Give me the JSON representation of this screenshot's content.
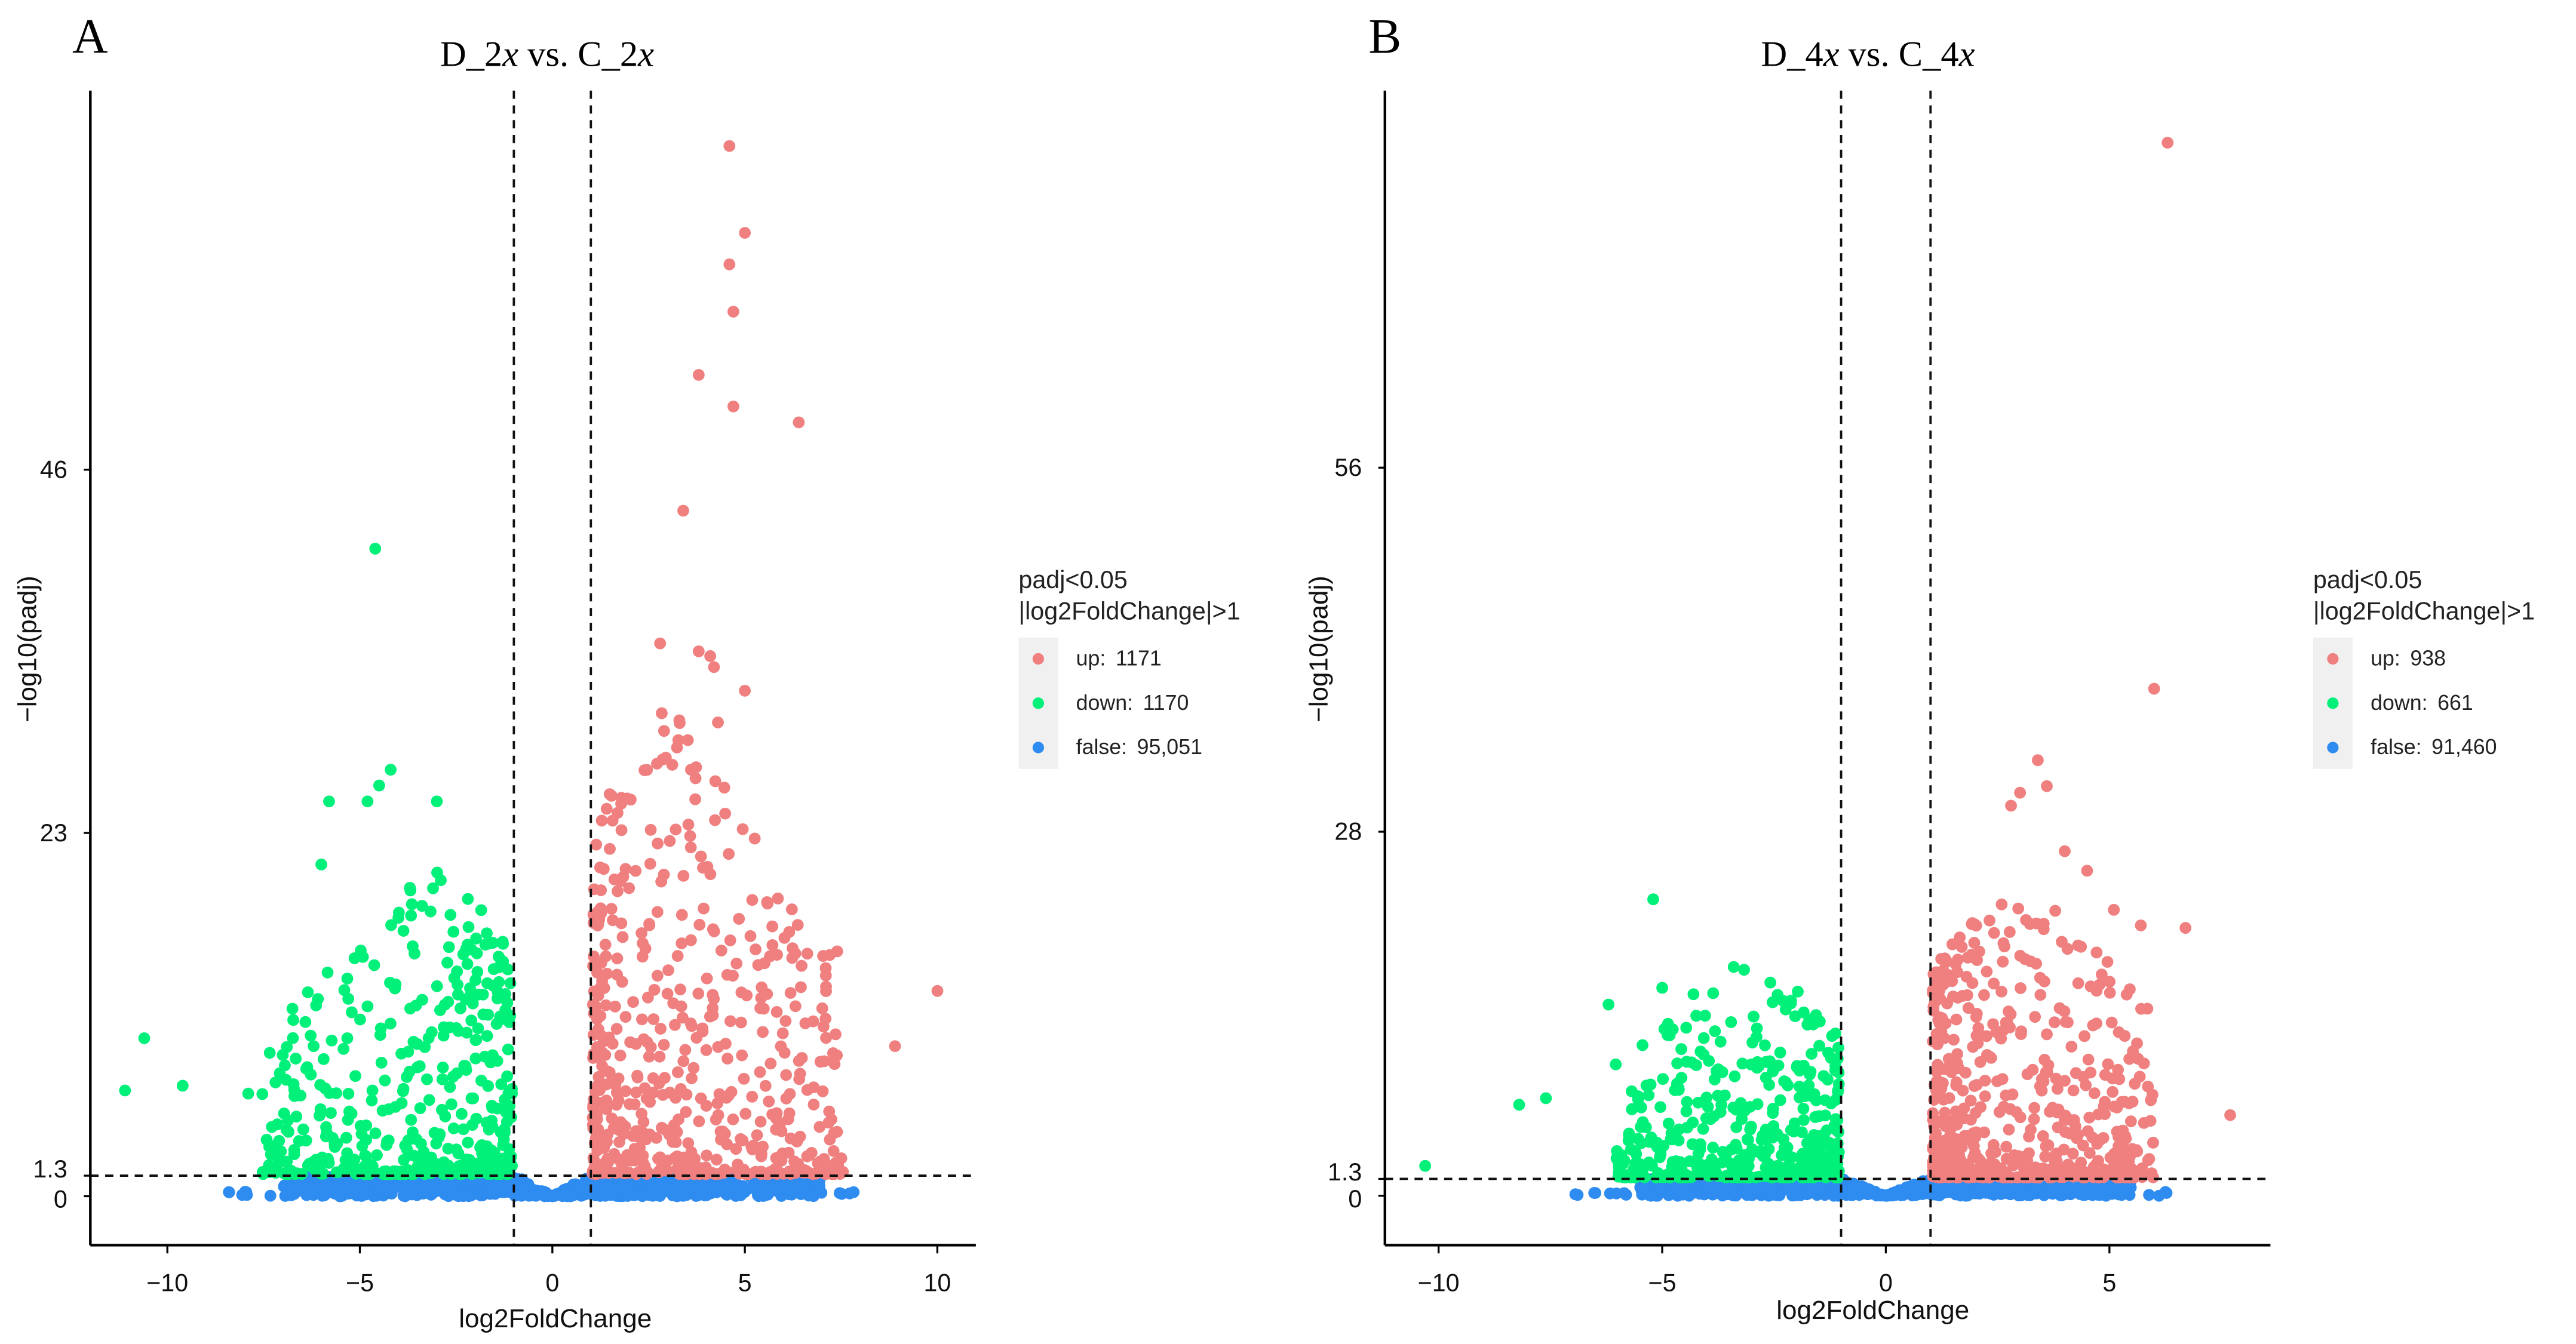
{
  "colors": {
    "up": "#F08080",
    "down": "#00F07A",
    "false": "#2E8BF0"
  },
  "chart_data": [
    {
      "type": "scatter",
      "panel_label": "A",
      "title_parts": [
        "D_2",
        "x",
        " vs. C_2",
        "x"
      ],
      "xlabel": "log2FoldChange",
      "ylabel": "−log10(padj)",
      "xlim": [
        -12.0,
        11.0
      ],
      "ylim": [
        -3.1,
        70
      ],
      "xticks": [
        -10,
        -5,
        0,
        5,
        10
      ],
      "xtick_labels": [
        "−10",
        "−5",
        "0",
        "5",
        "10"
      ],
      "yticks": [
        0,
        1.3,
        23,
        46
      ],
      "ytick_labels": [
        "0",
        "1.3",
        "23",
        "46"
      ],
      "thresholds": {
        "x": [
          -1,
          1
        ],
        "y": 1.3
      },
      "legend": {
        "title_lines": [
          "padj<0.05",
          "|log2FoldChange|>1"
        ],
        "placement": "right",
        "entries": [
          {
            "key": "up",
            "label": "up:",
            "count": "1171"
          },
          {
            "key": "down",
            "label": "down:",
            "count": "1170"
          },
          {
            "key": "false",
            "label": "false:",
            "count": "95,051"
          }
        ]
      },
      "series": [
        {
          "name": "up",
          "points": [
            [
              4.6,
              66.5
            ],
            [
              5.0,
              61
            ],
            [
              4.6,
              59
            ],
            [
              4.7,
              56
            ],
            [
              3.8,
              52
            ],
            [
              4.7,
              50
            ],
            [
              6.4,
              49
            ],
            [
              3.4,
              43.4
            ],
            [
              10.0,
              13
            ],
            [
              7.4,
              15.5
            ],
            [
              8.9,
              9.5
            ],
            [
              2.8,
              35
            ],
            [
              3.8,
              34.5
            ],
            [
              4.1,
              34.2
            ],
            [
              4.2,
              33.5
            ],
            [
              5.0,
              32
            ],
            [
              4.3,
              30
            ],
            [
              3.6,
              27
            ]
          ]
        },
        {
          "name": "down",
          "points": [
            [
              -4.6,
              41
            ],
            [
              -4.2,
              27
            ],
            [
              -4.5,
              26
            ],
            [
              -4.8,
              25
            ],
            [
              -5.8,
              25
            ],
            [
              -3.0,
              25
            ],
            [
              -6.0,
              21
            ],
            [
              -2.9,
              20
            ],
            [
              -3.1,
              19.5
            ],
            [
              -10.6,
              10
            ],
            [
              -11.1,
              6.7
            ],
            [
              -9.6,
              7
            ],
            [
              -7.9,
              6.5
            ],
            [
              -6.2,
              9.5
            ],
            [
              -5.3,
              12.5
            ]
          ]
        }
      ]
    },
    {
      "type": "scatter",
      "panel_label": "B",
      "title_parts": [
        "D_4",
        "x",
        " vs. C_4",
        "x"
      ],
      "xlabel": "log2FoldChange",
      "ylabel": "−log10(padj)",
      "xlim": [
        -11.2,
        8.6
      ],
      "ylim": [
        -3.8,
        85
      ],
      "xticks": [
        -10,
        -5,
        0,
        5
      ],
      "xtick_labels": [
        "−10",
        "−5",
        "0",
        "5"
      ],
      "yticks": [
        0,
        1.3,
        28,
        56
      ],
      "ytick_labels": [
        "0",
        "1.3",
        "28",
        "56"
      ],
      "thresholds": {
        "x": [
          -1,
          1
        ],
        "y": 1.3
      },
      "legend": {
        "title_lines": [
          "padj<0.05",
          "|log2FoldChange|>1"
        ],
        "placement": "right",
        "entries": [
          {
            "key": "up",
            "label": "up:",
            "count": "938"
          },
          {
            "key": "down",
            "label": "down:",
            "count": "661"
          },
          {
            "key": "false",
            "label": "false:",
            "count": "91,460"
          }
        ]
      },
      "series": [
        {
          "name": "up",
          "points": [
            [
              6.3,
              81
            ],
            [
              6.0,
              39
            ],
            [
              3.4,
              33.5
            ],
            [
              7.7,
              6.2
            ],
            [
              6.7,
              20.6
            ],
            [
              4.5,
              25
            ],
            [
              3.0,
              31
            ],
            [
              3.6,
              31.5
            ],
            [
              2.8,
              30
            ],
            [
              4.0,
              26.5
            ],
            [
              5.1,
              22
            ],
            [
              5.7,
              20.8
            ]
          ]
        },
        {
          "name": "down",
          "points": [
            [
              -5.2,
              22.8
            ],
            [
              -3.4,
              17.6
            ],
            [
              -6.2,
              14.7
            ],
            [
              -10.3,
              2.3
            ],
            [
              -5.0,
              16
            ],
            [
              -4.3,
              15.5
            ],
            [
              -8.2,
              7
            ],
            [
              -7.6,
              7.5
            ],
            [
              -2.3,
              15
            ]
          ]
        }
      ]
    }
  ]
}
